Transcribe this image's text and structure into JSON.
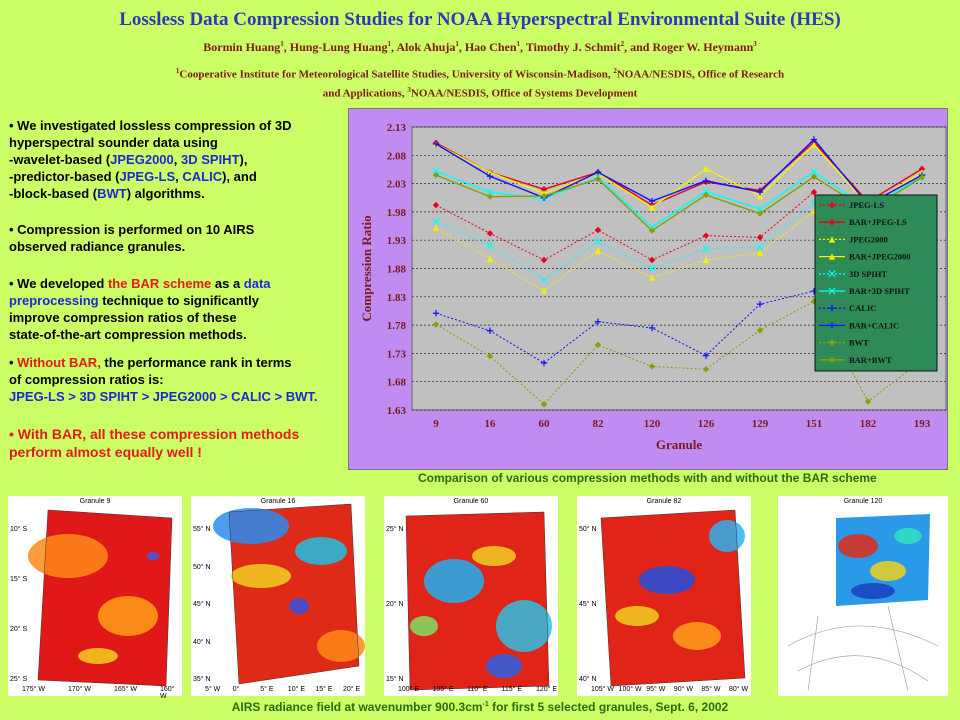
{
  "header": {
    "title": "Lossless Data Compression Studies for NOAA Hyperspectral Environmental Suite (HES)",
    "authors": [
      {
        "name": "Bormin Huang",
        "sup": "1"
      },
      {
        "name": "Hung-Lung Huang",
        "sup": "1"
      },
      {
        "name": "Alok Ahuja",
        "sup": "1"
      },
      {
        "name": "Hao Chen",
        "sup": "1"
      },
      {
        "name": "Timothy J. Schmit",
        "sup": "2"
      },
      {
        "name": "and Roger W. Heymann",
        "sup": "3"
      }
    ],
    "affil_line1_parts": [
      {
        "sup": "1",
        "text": "Cooperative Institute for Meteorological Satellite Studies, University of Wisconsin-Madison, "
      },
      {
        "sup": "2",
        "text": "NOAA/NESDIS, Office of Research"
      }
    ],
    "affil_line2_parts": [
      {
        "sup": "",
        "text": "and Applications, "
      },
      {
        "sup": "3",
        "text": "NOAA/NESDIS, Office of Systems Development"
      }
    ]
  },
  "bullets": [
    {
      "lines": [
        [
          {
            "t": "• We investigated lossless compression of 3D",
            "c": ""
          }
        ],
        [
          {
            "t": "hyperspectral sounder data using",
            "c": ""
          }
        ],
        [
          {
            "t": "-wavelet-based (",
            "c": ""
          },
          {
            "t": "JPEG2000",
            "c": "blue"
          },
          {
            "t": ", ",
            "c": ""
          },
          {
            "t": "3D SPIHT",
            "c": "blue"
          },
          {
            "t": "),",
            "c": ""
          }
        ],
        [
          {
            "t": "-predictor-based (",
            "c": ""
          },
          {
            "t": "JPEG-LS",
            "c": "blue"
          },
          {
            "t": ", ",
            "c": ""
          },
          {
            "t": "CALIC",
            "c": "blue"
          },
          {
            "t": "), and",
            "c": ""
          }
        ],
        [
          {
            "t": "-block-based (",
            "c": ""
          },
          {
            "t": "BWT",
            "c": "blue"
          },
          {
            "t": ") algorithms.",
            "c": ""
          }
        ]
      ]
    },
    {
      "lines": [
        [
          {
            "t": "• Compression is performed on 10 AIRS",
            "c": ""
          }
        ],
        [
          {
            "t": "observed radiance granules.",
            "c": ""
          }
        ]
      ]
    },
    {
      "lines": [
        [
          {
            "t": "• We developed ",
            "c": ""
          },
          {
            "t": "the BAR scheme",
            "c": "red"
          },
          {
            "t": " as a ",
            "c": ""
          },
          {
            "t": "data",
            "c": "blue"
          }
        ],
        [
          {
            "t": "preprocessing",
            "c": "blue"
          },
          {
            "t": " technique to significantly",
            "c": ""
          }
        ],
        [
          {
            "t": "improve compression ratios of these",
            "c": ""
          }
        ],
        [
          {
            "t": "state-of-the-art compression methods.",
            "c": ""
          }
        ]
      ]
    },
    {
      "lines": [
        [
          {
            "t": "• ",
            "c": ""
          },
          {
            "t": "Without BAR,",
            "c": "red"
          },
          {
            "t": " the performance rank in terms",
            "c": ""
          }
        ],
        [
          {
            "t": "of compression ratios is:",
            "c": ""
          }
        ],
        [
          {
            "t": "JPEG-LS  > 3D SPIHT > JPEG2000 > CALIC > BWT.",
            "c": "blue"
          }
        ]
      ]
    },
    {
      "lines": [
        [
          {
            "t": "• With BAR, all these compression methods",
            "c": "red"
          }
        ],
        [
          {
            "t": "perform almost equally well !",
            "c": "red"
          }
        ]
      ]
    }
  ],
  "chart_data": {
    "type": "line",
    "title": "",
    "xlabel": "Granule",
    "ylabel": "Compression Ratio",
    "categories": [
      "9",
      "16",
      "60",
      "82",
      "120",
      "126",
      "129",
      "151",
      "182",
      "193"
    ],
    "ylim": [
      1.63,
      2.13
    ],
    "yticks": [
      "1.63",
      "1.68",
      "1.73",
      "1.78",
      "1.83",
      "1.88",
      "1.93",
      "1.98",
      "2.03",
      "2.08",
      "2.13"
    ],
    "grid": true,
    "legend_position": "right",
    "series": [
      {
        "name": "JPEG-LS",
        "color": "#e8001c",
        "dash": true,
        "marker": "diamond",
        "values": [
          1.992,
          1.942,
          1.895,
          1.948,
          1.895,
          1.938,
          1.935,
          2.015,
          1.888,
          1.943
        ]
      },
      {
        "name": "BAR+JPEG-LS",
        "color": "#e8001c",
        "dash": false,
        "marker": "diamond",
        "values": [
          2.102,
          2.05,
          2.02,
          2.05,
          1.992,
          2.033,
          2.018,
          2.103,
          1.998,
          2.056
        ]
      },
      {
        "name": "JPEG2000",
        "color": "#f0f000",
        "dash": true,
        "marker": "triangle",
        "values": [
          1.952,
          1.897,
          1.841,
          1.911,
          1.864,
          1.895,
          1.908,
          1.981,
          1.84,
          1.9
        ]
      },
      {
        "name": "BAR+JPEG2000",
        "color": "#f0f000",
        "dash": false,
        "marker": "triangle",
        "values": [
          2.1,
          2.05,
          2.013,
          2.048,
          1.988,
          2.056,
          2.008,
          2.099,
          1.991,
          2.05
        ]
      },
      {
        "name": "3D SPIHT",
        "color": "#00ffff",
        "dash": true,
        "marker": "x",
        "values": [
          1.963,
          1.921,
          1.86,
          1.928,
          1.88,
          1.915,
          1.918,
          1.996,
          1.865,
          1.929
        ]
      },
      {
        "name": "BAR+3D SPIHT",
        "color": "#00ffff",
        "dash": false,
        "marker": "x",
        "values": [
          2.052,
          2.015,
          2.003,
          2.041,
          1.953,
          2.016,
          1.985,
          2.051,
          1.985,
          2.043
        ]
      },
      {
        "name": "CALIC",
        "color": "#1010ff",
        "dash": true,
        "marker": "plus",
        "values": [
          1.801,
          1.77,
          1.713,
          1.786,
          1.775,
          1.726,
          1.817,
          1.84,
          1.712,
          1.75
        ]
      },
      {
        "name": "BAR+CALIC",
        "color": "#1010ff",
        "dash": false,
        "marker": "plus",
        "values": [
          2.1,
          2.043,
          2.005,
          2.05,
          1.999,
          2.035,
          2.015,
          2.108,
          1.993,
          2.045
        ]
      },
      {
        "name": "BWT",
        "color": "#88a000",
        "dash": true,
        "marker": "diamond",
        "values": [
          1.781,
          1.725,
          1.64,
          1.745,
          1.707,
          1.702,
          1.771,
          1.822,
          1.645,
          1.718
        ]
      },
      {
        "name": "BAR+BWT",
        "color": "#88a000",
        "dash": false,
        "marker": "diamond",
        "values": [
          2.045,
          2.007,
          2.008,
          2.038,
          1.947,
          2.01,
          1.977,
          2.042,
          1.982,
          2.041
        ]
      }
    ]
  },
  "captions": {
    "chart": "Comparison of various compression methods with and without the BAR scheme",
    "bottom_prefix": "AIRS radiance field at wavenumber 900.3cm",
    "bottom_sup": "-1",
    "bottom_suffix": " for first 5 selected granules, Sept. 6, 2002"
  },
  "maps": [
    {
      "title": "Granule 9",
      "lat_labels": [
        "10° S",
        "15° S",
        "20° S",
        "25° S"
      ],
      "lon_labels": [
        "175° W",
        "170° W",
        "165° W",
        "160° W"
      ]
    },
    {
      "title": "Granule 16",
      "lat_labels": [
        "55° N",
        "50° N",
        "45° N",
        "40° N",
        "35° N"
      ],
      "lon_labels": [
        "5° W",
        "0°",
        "5° E",
        "10° E",
        "15° E",
        "20° E"
      ]
    },
    {
      "title": "Granule 60",
      "lat_labels": [
        "25° N",
        "20° N",
        "15° N"
      ],
      "lon_labels": [
        "100° E",
        "105° E",
        "110° E",
        "115° E",
        "120° E"
      ]
    },
    {
      "title": "Granule 82",
      "lat_labels": [
        "50° N",
        "45° N",
        "40° N"
      ],
      "lon_labels": [
        "105° W",
        "100° W",
        "95° W",
        "90° W",
        "85° W",
        "80° W"
      ]
    },
    {
      "title": "Granule 120",
      "lat_labels": [],
      "lon_labels": []
    }
  ]
}
